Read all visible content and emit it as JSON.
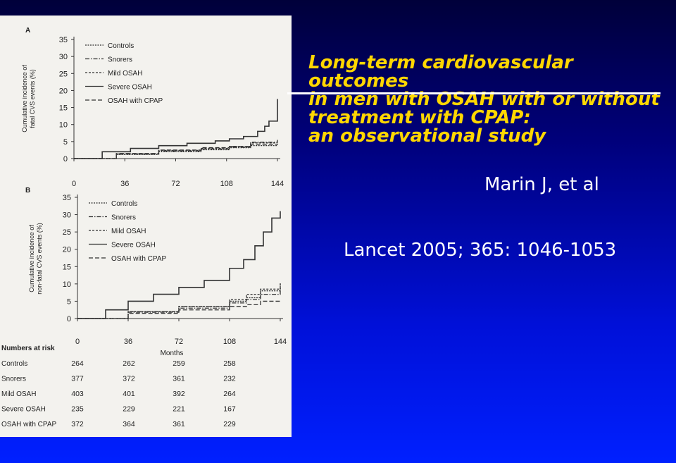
{
  "slide": {
    "title_lines": [
      "Long-term cardiovascular outcomes",
      "in men with OSAH with or without",
      "treatment with CPAP:",
      "an observational study"
    ],
    "author": "Marin J, et al",
    "citation": "Lancet 2005; 365: 1046-1053",
    "colors": {
      "title": "#ffd700",
      "text": "#ffffff",
      "rule": "#ffffff"
    }
  },
  "chart_data": [
    {
      "type": "line",
      "panel": "A",
      "ylabel": "Cumulative incidence of fatal CVS events (%)",
      "xlabel": "",
      "xticks": [
        "0",
        "36",
        "72",
        "108",
        "144"
      ],
      "yticks": [
        "0",
        "5",
        "10",
        "15",
        "20",
        "25",
        "30",
        "35"
      ],
      "xlim": [
        0,
        144
      ],
      "ylim": [
        0,
        35
      ],
      "legend_position": "top-left",
      "series": [
        {
          "name": "Controls",
          "dash": "2,1.5",
          "x": [
            0,
            30,
            60,
            90,
            110,
            125,
            144
          ],
          "y": [
            0,
            1.2,
            2,
            2.6,
            3.2,
            3.8,
            4
          ]
        },
        {
          "name": "Snorers",
          "dash": "6,2,1.5,2",
          "x": [
            0,
            30,
            60,
            90,
            110,
            125,
            144
          ],
          "y": [
            0,
            1.3,
            2.2,
            2.8,
            3.3,
            4.8,
            5.5
          ]
        },
        {
          "name": "Mild OSAH",
          "dash": "3,2",
          "x": [
            0,
            30,
            60,
            90,
            110,
            125,
            144
          ],
          "y": [
            0,
            1.4,
            2.4,
            3,
            3.6,
            4.6,
            4.6
          ]
        },
        {
          "name": "Severe OSAH",
          "dash": "",
          "x": [
            0,
            20,
            40,
            60,
            80,
            100,
            110,
            120,
            130,
            135,
            138,
            144
          ],
          "y": [
            0,
            2,
            3,
            3.8,
            4.5,
            5.2,
            5.8,
            6.5,
            8,
            9.5,
            11,
            17.5
          ]
        },
        {
          "name": "OSAH with CPAP",
          "dash": "6,3",
          "x": [
            0,
            30,
            60,
            90,
            110,
            125,
            144
          ],
          "y": [
            0,
            1.5,
            2.5,
            3.2,
            3.6,
            4.2,
            4.3
          ]
        }
      ]
    },
    {
      "type": "line",
      "panel": "B",
      "ylabel": "Cumulative incidence of non-fatal CVS events (%)",
      "xlabel": "Months",
      "xticks": [
        "0",
        "36",
        "72",
        "108",
        "144"
      ],
      "yticks": [
        "0",
        "5",
        "10",
        "15",
        "20",
        "25",
        "30",
        "35"
      ],
      "xlim": [
        0,
        144
      ],
      "ylim": [
        0,
        35
      ],
      "legend_position": "top-left",
      "series": [
        {
          "name": "Controls",
          "dash": "2,1.5",
          "x": [
            0,
            36,
            72,
            108,
            120,
            130,
            144
          ],
          "y": [
            0,
            2,
            3.5,
            5,
            6,
            8,
            10
          ]
        },
        {
          "name": "Snorers",
          "dash": "6,2,1.5,2",
          "x": [
            0,
            36,
            72,
            108,
            120,
            130,
            144
          ],
          "y": [
            0,
            1.8,
            3,
            4.5,
            5.5,
            7,
            9
          ]
        },
        {
          "name": "Mild OSAH",
          "dash": "3,2",
          "x": [
            0,
            36,
            72,
            108,
            120,
            130,
            144
          ],
          "y": [
            0,
            2,
            3.5,
            5.5,
            7,
            8.5,
            10.5
          ]
        },
        {
          "name": "Severe OSAH",
          "dash": "",
          "x": [
            0,
            20,
            36,
            54,
            72,
            90,
            108,
            118,
            126,
            132,
            138,
            144
          ],
          "y": [
            0,
            2.5,
            5,
            7,
            9,
            11,
            14.5,
            17,
            21,
            25,
            29,
            31
          ]
        },
        {
          "name": "OSAH with CPAP",
          "dash": "6,3",
          "x": [
            0,
            36,
            72,
            108,
            120,
            130,
            144
          ],
          "y": [
            0,
            1.5,
            2.5,
            3.5,
            4,
            5,
            5.5
          ]
        }
      ]
    }
  ],
  "numbers_at_risk": {
    "heading": "Numbers at risk",
    "rows": [
      {
        "label": "Controls",
        "values": [
          "264",
          "262",
          "259",
          "258"
        ]
      },
      {
        "label": "Snorers",
        "values": [
          "377",
          "372",
          "361",
          "232"
        ]
      },
      {
        "label": "Mild OSAH",
        "values": [
          "403",
          "401",
          "392",
          "264"
        ]
      },
      {
        "label": "Severe OSAH",
        "values": [
          "235",
          "229",
          "221",
          "167"
        ]
      },
      {
        "label": "OSAH with CPAP",
        "values": [
          "372",
          "364",
          "361",
          "229"
        ]
      }
    ]
  }
}
